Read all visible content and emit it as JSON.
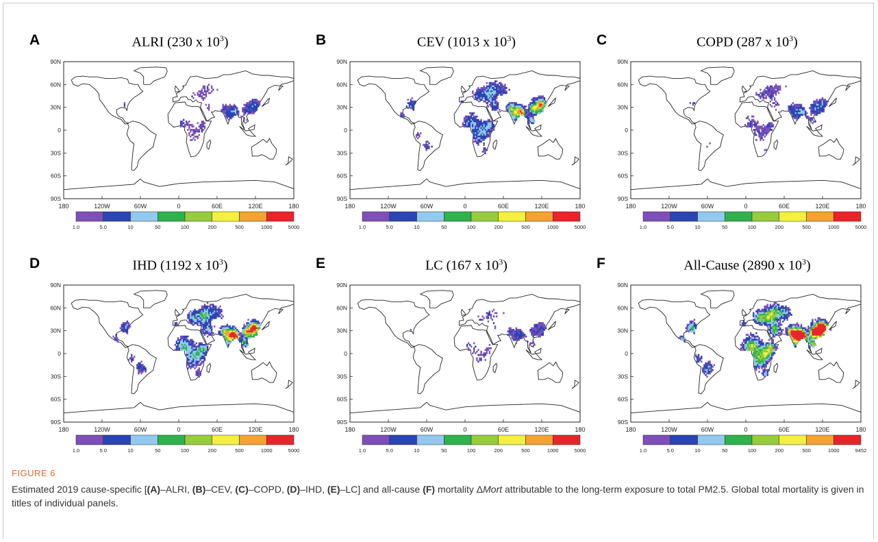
{
  "figure": {
    "label": "FIGURE 6",
    "caption_parts": [
      {
        "t": "Estimated 2019 cause-specific [",
        "s": ""
      },
      {
        "t": "(A)",
        "s": "b"
      },
      {
        "t": "–ALRI, ",
        "s": ""
      },
      {
        "t": "(B)",
        "s": "b"
      },
      {
        "t": "–CEV, ",
        "s": ""
      },
      {
        "t": "(C)",
        "s": "b"
      },
      {
        "t": "–COPD, ",
        "s": ""
      },
      {
        "t": "(D)",
        "s": "b"
      },
      {
        "t": "–IHD, ",
        "s": ""
      },
      {
        "t": "(E)",
        "s": "b"
      },
      {
        "t": "–LC] and all-cause ",
        "s": ""
      },
      {
        "t": "(F)",
        "s": "b"
      },
      {
        "t": " mortality Δ",
        "s": ""
      },
      {
        "t": "Mort",
        "s": "i"
      },
      {
        "t": " attributable to the long-term exposure to total PM2.5. Global total mortality is given in titles of individual panels.",
        "s": ""
      }
    ]
  },
  "axes": {
    "lat_labels": [
      "90N",
      "60N",
      "30N",
      "0",
      "30S",
      "60S",
      "90S"
    ],
    "lon_labels": [
      "180",
      "120W",
      "60W",
      "0",
      "60E",
      "120E",
      "180"
    ]
  },
  "colorbar": {
    "colors": [
      "#7e4fb9",
      "#2a44b3",
      "#93c9ef",
      "#2fb24c",
      "#96cc3e",
      "#f3ef43",
      "#f4a232",
      "#e8262a"
    ],
    "tick_labels": [
      "1.0",
      "5.0",
      "10",
      "50",
      "100",
      "200",
      "500",
      "1000",
      "5000"
    ]
  },
  "panels": [
    {
      "letter": "A",
      "title": "ALRI (230 x 10",
      "exp": "3",
      "close": ")",
      "cbar_max": "5000",
      "intensity": 0.35
    },
    {
      "letter": "B",
      "title": "CEV (1013 x 10",
      "exp": "3",
      "close": ")",
      "cbar_max": "5000",
      "intensity": 0.7
    },
    {
      "letter": "C",
      "title": "COPD (287 x 10",
      "exp": "3",
      "close": ")",
      "cbar_max": "5000",
      "intensity": 0.4
    },
    {
      "letter": "D",
      "title": "IHD (1192 x 10",
      "exp": "3",
      "close": ")",
      "cbar_max": "5000",
      "intensity": 0.8
    },
    {
      "letter": "E",
      "title": "LC (167 x 10",
      "exp": "3",
      "close": ")",
      "cbar_max": "5000",
      "intensity": 0.3
    },
    {
      "letter": "F",
      "title": "All-Cause (2890 x 10",
      "exp": "3",
      "close": ")",
      "cbar_max": "9452",
      "intensity": 1.0
    }
  ]
}
